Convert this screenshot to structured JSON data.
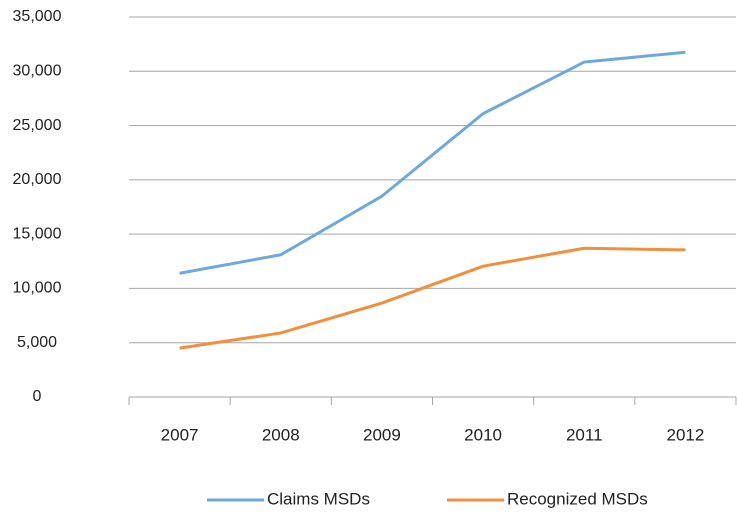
{
  "chart_data": {
    "type": "line",
    "categories": [
      "2007",
      "2008",
      "2009",
      "2010",
      "2011",
      "2012"
    ],
    "series": [
      {
        "name": "Claims MSDs",
        "color": "#6fa8dc",
        "values": [
          11400,
          13100,
          18500,
          26100,
          30850,
          31750
        ]
      },
      {
        "name": "Recognized MSDs",
        "color": "#f0903f",
        "values": [
          4500,
          5900,
          8650,
          12050,
          13700,
          13550
        ]
      }
    ],
    "ylim": [
      0,
      35000
    ],
    "yticks": [
      0,
      {
        "value": 5000,
        "label": "5,000"
      },
      {
        "value": 10000,
        "label": "10,000"
      },
      {
        "value": 15000,
        "label": "15,000"
      },
      {
        "value": 20000,
        "label": "20,000"
      },
      {
        "value": 25000,
        "label": "25,000"
      },
      {
        "value": 30000,
        "label": "30,000"
      },
      {
        "value": 35000,
        "label": "35,000"
      }
    ],
    "grid": true,
    "legend": "bottom"
  }
}
